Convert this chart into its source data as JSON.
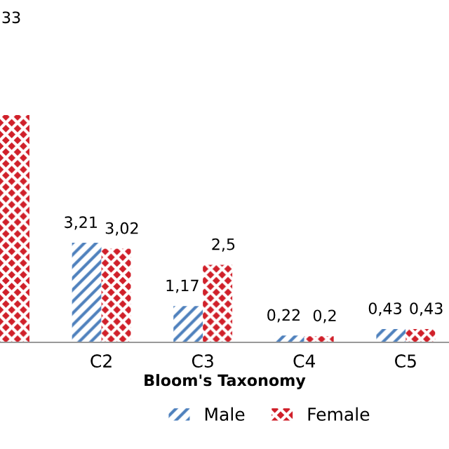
{
  "chart_data": {
    "type": "bar",
    "xlabel": "Bloom's Taxonomy",
    "annotations": [
      "33"
    ],
    "categories": [
      null,
      "C2",
      "C3",
      "C4",
      "C5"
    ],
    "series": [
      {
        "name": "Male",
        "color": "#4f81bd",
        "values": [
          null,
          3.21,
          1.17,
          0.22,
          0.43
        ],
        "value_labels": [
          null,
          "3,21",
          "1,17",
          "0,22",
          "0,43"
        ]
      },
      {
        "name": "Female",
        "color": "#d0202a",
        "values": [
          7.33,
          3.02,
          2.5,
          0.2,
          0.43
        ],
        "value_labels": [
          null,
          "3,02",
          "2,5",
          "0,2",
          "0,43"
        ]
      }
    ],
    "legend": "bottom",
    "grid": false
  }
}
